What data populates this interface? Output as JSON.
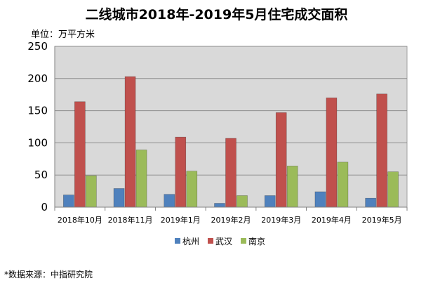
{
  "chart_data": {
    "type": "bar",
    "title": "二线城市2018年-2019年5月住宅成交面积",
    "unit_label": "单位：万平方米",
    "categories": [
      "2018年10月",
      "2018年11月",
      "2019年1月",
      "2019年2月",
      "2019年3月",
      "2019年4月",
      "2019年5月"
    ],
    "series": [
      {
        "name": "杭州",
        "color": "#4f81bd",
        "values": [
          19,
          29,
          20,
          6,
          18,
          24,
          14
        ]
      },
      {
        "name": "武汉",
        "color": "#c0504d",
        "values": [
          164,
          203,
          109,
          107,
          147,
          170,
          176
        ]
      },
      {
        "name": "南京",
        "color": "#9bbb59",
        "values": [
          49,
          89,
          56,
          18,
          64,
          70,
          55
        ]
      }
    ],
    "ylim": [
      0,
      250
    ],
    "yticks": [
      0,
      50,
      100,
      150,
      200,
      250
    ],
    "grid": true,
    "legend_position": "bottom"
  },
  "source_note": "*数据来源：中指研究院"
}
